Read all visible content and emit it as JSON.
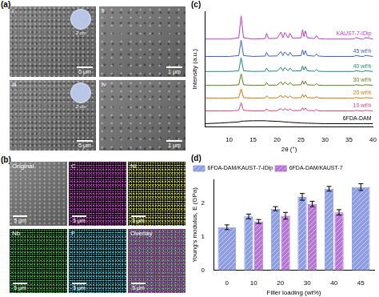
{
  "panel_a": {
    "label": "(a)",
    "images": [
      {
        "label": "i",
        "scale_bar": "5 μm",
        "inset_scale": "2 cm"
      },
      {
        "label": "ii",
        "scale_bar": "1 μm"
      },
      {
        "label": "iii",
        "scale_bar": "5 μm",
        "inset_scale": "2 cm"
      },
      {
        "label": "iv",
        "scale_bar": "1 μm"
      }
    ]
  },
  "panel_b": {
    "label": "(b)",
    "maps": [
      {
        "label": "Original",
        "scale_bar": "5 μm"
      },
      {
        "label": "C",
        "scale_bar": "5 μm"
      },
      {
        "label": "Ni",
        "scale_bar": "5 μm"
      },
      {
        "label": "Nb",
        "scale_bar": "5 μm"
      },
      {
        "label": "F",
        "scale_bar": "5 μm"
      },
      {
        "label": "Overlay",
        "scale_bar": "5 μm"
      }
    ]
  },
  "chart_data": [
    {
      "type": "line",
      "title": "(c)",
      "x_label": "2θ (°)",
      "y_label": "Intensity (a.u.)",
      "x": [
        5,
        8,
        10,
        12,
        12.5,
        13,
        15,
        17.5,
        17.8,
        18.2,
        20,
        20.8,
        21.2,
        21.6,
        22.3,
        22.7,
        23.2,
        25,
        25.3,
        25.6,
        25.9,
        26.3,
        27.8,
        28.2,
        28.6,
        30,
        35,
        36,
        36.4,
        37.5,
        38,
        38.4,
        40
      ],
      "xlim": [
        5,
        40
      ],
      "xticks": [
        10,
        15,
        20,
        25,
        30,
        35,
        40
      ],
      "ylim": [
        0,
        100
      ],
      "yticks": [],
      "grid": false,
      "tick_labels": "x",
      "series": [
        {
          "name": "KAUST-7-IDip",
          "color": "#c03cc0",
          "values": [
            76,
            76,
            76,
            77,
            96,
            77,
            76,
            76.4,
            81,
            76.4,
            76.6,
            82,
            77,
            81.6,
            77,
            81,
            76.6,
            77,
            84,
            78,
            83,
            77,
            76.4,
            79,
            76.4,
            76,
            76,
            76,
            77.2,
            76,
            76,
            77.2,
            76
          ]
        },
        {
          "name": "45 wt%",
          "color": "#3a5fcd",
          "values": [
            61,
            61,
            61,
            61.7,
            75,
            61.7,
            61,
            61.3,
            64.5,
            61.3,
            61.4,
            65.2,
            61.7,
            64.9,
            61.7,
            64.5,
            61.4,
            61.7,
            66.6,
            62.4,
            65.9,
            61.7,
            61.3,
            63.1,
            61.3,
            61,
            61,
            61,
            61.8,
            61,
            61,
            61.8,
            61
          ]
        },
        {
          "name": "40 wt%",
          "color": "#1f8a70",
          "values": [
            48,
            48,
            48,
            48.6,
            60,
            48.6,
            48,
            48.2,
            51,
            48.2,
            48.4,
            51.6,
            48.6,
            51.4,
            48.6,
            51,
            48.4,
            48.6,
            52.8,
            49.2,
            52.2,
            48.6,
            48.2,
            49.8,
            48.2,
            48,
            48,
            48,
            48.7,
            48,
            48,
            48.7,
            48
          ]
        },
        {
          "name": "30 wt%",
          "color": "#5a7d1e",
          "values": [
            36,
            36,
            36,
            36.5,
            46,
            36.5,
            36,
            36.2,
            38.5,
            36.2,
            36.3,
            39,
            36.5,
            38.8,
            36.5,
            38.5,
            36.3,
            36.5,
            40,
            37,
            39.5,
            36.5,
            36.2,
            37.5,
            36.2,
            36,
            36,
            36,
            36.6,
            36,
            36,
            36.6,
            36
          ]
        },
        {
          "name": "20 wt%",
          "color": "#d9730d",
          "values": [
            25,
            25,
            25,
            25.4,
            33,
            25.4,
            25,
            25.2,
            27,
            25.2,
            25.2,
            27.4,
            25.4,
            27.2,
            25.4,
            27,
            25.2,
            25.4,
            28.2,
            25.8,
            27.8,
            25.4,
            25.2,
            26.2,
            25.2,
            25,
            25,
            25,
            25.5,
            25,
            25,
            25.5,
            25
          ]
        },
        {
          "name": "10 wt%",
          "color": "#e0457b",
          "values": [
            14,
            14,
            14,
            14.4,
            21,
            14.4,
            14,
            14.1,
            15.8,
            14.1,
            14.2,
            16.1,
            14.4,
            16,
            14.4,
            15.8,
            14.2,
            14.4,
            16.8,
            14.7,
            16.5,
            14.4,
            14.1,
            15.1,
            14.1,
            14,
            14,
            14,
            14.4,
            14,
            14,
            14.4,
            14
          ]
        },
        {
          "name": "6FDA-DAM",
          "color": "#000000",
          "values": [
            3,
            3.5,
            4,
            4.5,
            5,
            5.2,
            5.5,
            5.5,
            5.4,
            5.3,
            5,
            4.8,
            4.6,
            4.5,
            4.3,
            4.2,
            4,
            3.6,
            3.5,
            3.5,
            3.4,
            3.4,
            3.2,
            3.2,
            3.1,
            3,
            3,
            3,
            3,
            3,
            3,
            3,
            3
          ]
        }
      ]
    },
    {
      "type": "bar",
      "title": "(d)",
      "x_label": "Filler loading (wt%)",
      "y_label": "Young's modulus, E (GPa)",
      "categories": [
        "0",
        "10",
        "20",
        "30",
        "40",
        "45"
      ],
      "ylim": [
        0,
        2.7
      ],
      "yticks": [
        0,
        1,
        2
      ],
      "grid": false,
      "legend": "top-left",
      "series": [
        {
          "name": "6FDA-DAM/KAUST-7-IDip",
          "color": "#8c9de6",
          "values": [
            1.28,
            1.6,
            1.83,
            2.18,
            2.42,
            2.47
          ],
          "errors": [
            0.07,
            0.07,
            0.06,
            0.1,
            0.07,
            0.1
          ]
        },
        {
          "name": "6FDA-DAM/KAUST-7",
          "color": "#b575d6",
          "values": [
            null,
            1.45,
            1.62,
            1.97,
            1.72,
            null
          ],
          "errors": [
            null,
            0.06,
            0.1,
            0.08,
            0.08,
            null
          ]
        }
      ]
    }
  ]
}
